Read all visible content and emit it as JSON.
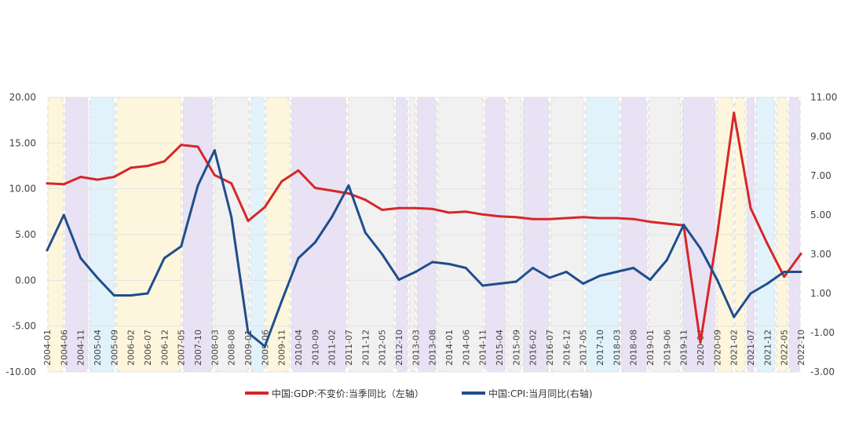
{
  "chart_data": {
    "type": "line",
    "x": [
      "2004-01",
      "2004-06",
      "2004-11",
      "2005-04",
      "2005-09",
      "2006-02",
      "2006-07",
      "2006-12",
      "2007-05",
      "2007-10",
      "2008-03",
      "2008-08",
      "2009-01",
      "2009-06",
      "2009-11",
      "2010-04",
      "2010-09",
      "2011-02",
      "2011-07",
      "2011-12",
      "2012-05",
      "2012-10",
      "2013-03",
      "2013-08",
      "2014-01",
      "2014-06",
      "2014-11",
      "2015-04",
      "2015-09",
      "2016-02",
      "2016-07",
      "2016-12",
      "2017-05",
      "2017-10",
      "2018-03",
      "2018-08",
      "2019-01",
      "2019-06",
      "2019-11",
      "2020-04",
      "2020-09",
      "2021-02",
      "2021-07",
      "2021-12",
      "2022-05",
      "2022-10"
    ],
    "ylim_left": [
      -10,
      20
    ],
    "yticks_left": [
      "20.00",
      "15.00",
      "10.00",
      "5.00",
      "0.00",
      "-5.00",
      "-10.00"
    ],
    "ylim_right": [
      -3,
      11
    ],
    "yticks_right": [
      "11.00",
      "9.00",
      "7.00",
      "5.00",
      "3.00",
      "1.00",
      "-1.00",
      "-3.00"
    ],
    "series": [
      {
        "name": "中国:GDP:不变价:当季同比（左轴）",
        "axis": "left",
        "color": "#d62728",
        "values": [
          10.6,
          10.5,
          11.3,
          11.0,
          11.3,
          12.3,
          12.5,
          13.0,
          14.8,
          14.6,
          11.5,
          10.6,
          6.5,
          8.0,
          10.8,
          12.0,
          10.1,
          9.8,
          9.5,
          8.8,
          7.7,
          7.9,
          7.9,
          7.8,
          7.4,
          7.5,
          7.2,
          7.0,
          6.9,
          6.7,
          6.7,
          6.8,
          6.9,
          6.8,
          6.8,
          6.7,
          6.4,
          6.2,
          6.0,
          -6.8,
          4.9,
          18.3,
          7.9,
          4.0,
          0.4,
          2.9
        ]
      },
      {
        "name": "中国:CPI:当月同比(右轴)",
        "axis": "right",
        "color": "#1f4e8c",
        "values": [
          3.2,
          5.0,
          2.8,
          1.8,
          0.9,
          0.9,
          1.0,
          2.8,
          3.4,
          6.5,
          8.3,
          4.9,
          -1.0,
          -1.7,
          0.6,
          2.8,
          3.6,
          4.9,
          6.5,
          4.1,
          3.0,
          1.7,
          2.1,
          2.6,
          2.5,
          2.3,
          1.4,
          1.5,
          1.6,
          2.3,
          1.8,
          2.1,
          1.5,
          1.9,
          2.1,
          2.3,
          1.7,
          2.7,
          4.5,
          3.3,
          1.7,
          -0.2,
          1.0,
          1.5,
          2.1,
          2.1
        ]
      }
    ],
    "legend_position": "bottom",
    "grid": true
  }
}
